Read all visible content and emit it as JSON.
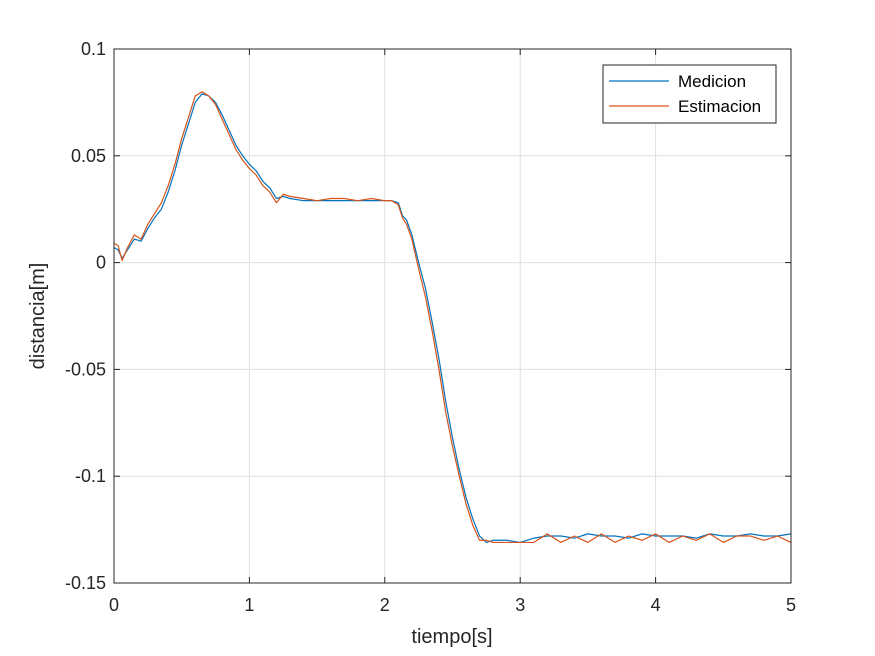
{
  "chart_data": {
    "type": "line",
    "xlabel": "tiempo[s]",
    "ylabel": "distancia[m]",
    "xlim": [
      0,
      5
    ],
    "ylim": [
      -0.15,
      0.1
    ],
    "x_ticks": [
      0,
      1,
      2,
      3,
      4,
      5
    ],
    "x_tick_labels": [
      "0",
      "1",
      "2",
      "3",
      "4",
      "5"
    ],
    "y_ticks": [
      0.1,
      0.05,
      0,
      -0.05,
      -0.1,
      -0.15
    ],
    "y_tick_labels": [
      "0.1",
      "0.05",
      "0",
      "-0.05",
      "-0.1",
      "-0.15"
    ],
    "grid": true,
    "legend_position": "top-right",
    "series": [
      {
        "name": "Medicion",
        "color": "#0072BD",
        "x": [
          0,
          0.03,
          0.06,
          0.1,
          0.15,
          0.2,
          0.25,
          0.3,
          0.35,
          0.4,
          0.45,
          0.5,
          0.55,
          0.6,
          0.65,
          0.7,
          0.75,
          0.8,
          0.85,
          0.9,
          0.95,
          1.0,
          1.05,
          1.1,
          1.15,
          1.2,
          1.25,
          1.3,
          1.4,
          1.5,
          1.6,
          1.7,
          1.8,
          1.9,
          2.0,
          2.05,
          2.1,
          2.13,
          2.16,
          2.2,
          2.25,
          2.3,
          2.35,
          2.4,
          2.45,
          2.5,
          2.55,
          2.6,
          2.65,
          2.7,
          2.75,
          2.8,
          2.9,
          3.0,
          3.1,
          3.2,
          3.3,
          3.4,
          3.5,
          3.6,
          3.7,
          3.8,
          3.9,
          4.0,
          4.1,
          4.2,
          4.3,
          4.4,
          4.5,
          4.6,
          4.7,
          4.8,
          4.9,
          5.0
        ],
        "y": [
          0.007,
          0.006,
          0.002,
          0.006,
          0.011,
          0.01,
          0.016,
          0.021,
          0.025,
          0.033,
          0.043,
          0.055,
          0.065,
          0.075,
          0.079,
          0.078,
          0.075,
          0.069,
          0.062,
          0.055,
          0.05,
          0.046,
          0.043,
          0.038,
          0.035,
          0.03,
          0.031,
          0.03,
          0.029,
          0.029,
          0.029,
          0.029,
          0.029,
          0.029,
          0.029,
          0.029,
          0.028,
          0.022,
          0.02,
          0.013,
          0.0,
          -0.012,
          -0.028,
          -0.045,
          -0.065,
          -0.082,
          -0.097,
          -0.11,
          -0.12,
          -0.128,
          -0.131,
          -0.13,
          -0.13,
          -0.131,
          -0.129,
          -0.128,
          -0.128,
          -0.129,
          -0.127,
          -0.128,
          -0.128,
          -0.129,
          -0.127,
          -0.128,
          -0.128,
          -0.128,
          -0.129,
          -0.127,
          -0.128,
          -0.128,
          -0.127,
          -0.128,
          -0.128,
          -0.127
        ]
      },
      {
        "name": "Estimacion",
        "color": "#D95319",
        "x": [
          0,
          0.03,
          0.06,
          0.1,
          0.15,
          0.2,
          0.25,
          0.3,
          0.35,
          0.4,
          0.45,
          0.5,
          0.55,
          0.6,
          0.65,
          0.7,
          0.75,
          0.8,
          0.85,
          0.9,
          0.95,
          1.0,
          1.05,
          1.1,
          1.15,
          1.2,
          1.25,
          1.3,
          1.4,
          1.5,
          1.6,
          1.7,
          1.8,
          1.9,
          2.0,
          2.05,
          2.1,
          2.13,
          2.16,
          2.2,
          2.25,
          2.3,
          2.35,
          2.4,
          2.45,
          2.5,
          2.55,
          2.6,
          2.65,
          2.7,
          2.75,
          2.8,
          2.9,
          3.0,
          3.1,
          3.2,
          3.3,
          3.4,
          3.5,
          3.6,
          3.7,
          3.8,
          3.9,
          4.0,
          4.1,
          4.2,
          4.3,
          4.4,
          4.5,
          4.6,
          4.7,
          4.8,
          4.9,
          5.0
        ],
        "y": [
          0.009,
          0.008,
          0.001,
          0.007,
          0.013,
          0.011,
          0.018,
          0.023,
          0.028,
          0.036,
          0.046,
          0.058,
          0.068,
          0.078,
          0.08,
          0.078,
          0.074,
          0.067,
          0.06,
          0.053,
          0.048,
          0.044,
          0.041,
          0.036,
          0.033,
          0.028,
          0.032,
          0.031,
          0.03,
          0.029,
          0.03,
          0.03,
          0.029,
          0.03,
          0.029,
          0.029,
          0.027,
          0.021,
          0.018,
          0.011,
          -0.003,
          -0.016,
          -0.032,
          -0.05,
          -0.07,
          -0.086,
          -0.1,
          -0.113,
          -0.123,
          -0.13,
          -0.13,
          -0.131,
          -0.131,
          -0.131,
          -0.131,
          -0.127,
          -0.131,
          -0.128,
          -0.131,
          -0.127,
          -0.131,
          -0.128,
          -0.13,
          -0.127,
          -0.131,
          -0.128,
          -0.13,
          -0.127,
          -0.131,
          -0.128,
          -0.128,
          -0.13,
          -0.128,
          -0.131
        ]
      }
    ]
  }
}
